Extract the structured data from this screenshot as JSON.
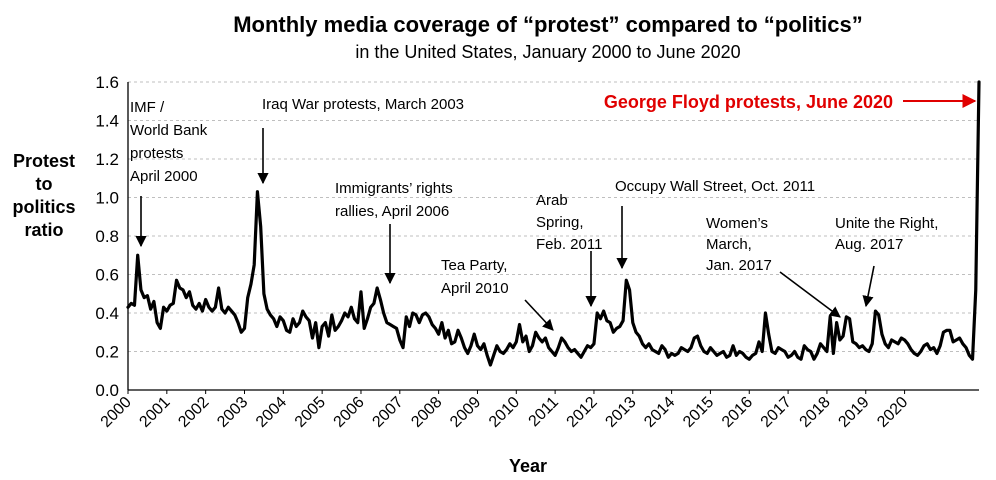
{
  "chart_data": {
    "type": "line",
    "title": "Monthly media coverage of “protest” compared to “politics”",
    "subtitle": "in the United States, January 2000 to June 2020",
    "xlabel": "Year",
    "ylabel": [
      "Protest",
      "to",
      "politics",
      "ratio"
    ],
    "ylim": [
      0,
      1.6
    ],
    "yticks": [
      "0.0",
      "0.2",
      "0.4",
      "0.6",
      "0.8",
      "1.0",
      "1.2",
      "1.4",
      "1.6"
    ],
    "xticks": [
      "2000",
      "2001",
      "2002",
      "2003",
      "2004",
      "2005",
      "2006",
      "2007",
      "2008",
      "2009",
      "2010",
      "2011",
      "2012",
      "2013",
      "2014",
      "2015",
      "2016",
      "2017",
      "2018",
      "2019",
      "2020"
    ],
    "grid": "horizontal dashed",
    "line_color": "#000000",
    "series": [
      {
        "start": "2000-01",
        "values": [
          0.43,
          0.45,
          0.44,
          0.7,
          0.52,
          0.48,
          0.49,
          0.42,
          0.46,
          0.35,
          0.32,
          0.43,
          0.41,
          0.44,
          0.45,
          0.57,
          0.53,
          0.52,
          0.48,
          0.51,
          0.44,
          0.42,
          0.45,
          0.41,
          0.47,
          0.43,
          0.41,
          0.43,
          0.53,
          0.42,
          0.4,
          0.43,
          0.41,
          0.39,
          0.35,
          0.3,
          0.32,
          0.48,
          0.55,
          0.65,
          1.03,
          0.85,
          0.5,
          0.42,
          0.39,
          0.37,
          0.33,
          0.38,
          0.36,
          0.31,
          0.3,
          0.37,
          0.33,
          0.35,
          0.41,
          0.38,
          0.36,
          0.27,
          0.35,
          0.22,
          0.33,
          0.35,
          0.28,
          0.39,
          0.31,
          0.33,
          0.36,
          0.4,
          0.38,
          0.43,
          0.37,
          0.35,
          0.51,
          0.32,
          0.37,
          0.43,
          0.45,
          0.53,
          0.47,
          0.4,
          0.35,
          0.34,
          0.33,
          0.32,
          0.26,
          0.22,
          0.38,
          0.33,
          0.4,
          0.39,
          0.35,
          0.39,
          0.4,
          0.38,
          0.34,
          0.32,
          0.29,
          0.35,
          0.27,
          0.31,
          0.24,
          0.25,
          0.31,
          0.27,
          0.22,
          0.19,
          0.23,
          0.29,
          0.23,
          0.21,
          0.24,
          0.18,
          0.13,
          0.18,
          0.23,
          0.2,
          0.19,
          0.21,
          0.24,
          0.22,
          0.25,
          0.34,
          0.25,
          0.28,
          0.2,
          0.23,
          0.3,
          0.27,
          0.25,
          0.27,
          0.22,
          0.2,
          0.18,
          0.22,
          0.27,
          0.25,
          0.22,
          0.2,
          0.21,
          0.19,
          0.17,
          0.2,
          0.23,
          0.22,
          0.24,
          0.4,
          0.37,
          0.41,
          0.36,
          0.35,
          0.3,
          0.32,
          0.33,
          0.36,
          0.57,
          0.52,
          0.35,
          0.3,
          0.28,
          0.24,
          0.22,
          0.24,
          0.21,
          0.2,
          0.19,
          0.23,
          0.21,
          0.17,
          0.19,
          0.18,
          0.19,
          0.22,
          0.21,
          0.2,
          0.22,
          0.27,
          0.28,
          0.23,
          0.2,
          0.19,
          0.22,
          0.2,
          0.18,
          0.19,
          0.2,
          0.17,
          0.18,
          0.23,
          0.18,
          0.2,
          0.19,
          0.17,
          0.16,
          0.18,
          0.19,
          0.25,
          0.2,
          0.4,
          0.29,
          0.2,
          0.19,
          0.22,
          0.21,
          0.2,
          0.17,
          0.18,
          0.2,
          0.17,
          0.16,
          0.23,
          0.21,
          0.2,
          0.16,
          0.19,
          0.24,
          0.22,
          0.2,
          0.38,
          0.19,
          0.35,
          0.26,
          0.28,
          0.38,
          0.37,
          0.25,
          0.24,
          0.22,
          0.23,
          0.21,
          0.2,
          0.24,
          0.41,
          0.39,
          0.29,
          0.24,
          0.22,
          0.26,
          0.25,
          0.24,
          0.27,
          0.26,
          0.24,
          0.21,
          0.19,
          0.18,
          0.2,
          0.23,
          0.24,
          0.21,
          0.22,
          0.19,
          0.23,
          0.3,
          0.31,
          0.31,
          0.25,
          0.26,
          0.27,
          0.24,
          0.22,
          0.18,
          0.16,
          0.52,
          1.6
        ]
      }
    ],
    "annotations": [
      {
        "id": "imf",
        "lines": [
          "IMF /",
          "World Bank",
          "protests",
          "April 2000"
        ],
        "target": "2000-04"
      },
      {
        "id": "iraq",
        "lines": [
          "Iraq War protests, March 2003"
        ],
        "target": "2003-03"
      },
      {
        "id": "immigrants",
        "lines": [
          "Immigrants’ rights",
          "rallies, April 2006"
        ],
        "target": "2006-04"
      },
      {
        "id": "teaparty",
        "lines": [
          "Tea Party,",
          "April 2010"
        ],
        "target": "2010-04"
      },
      {
        "id": "arab",
        "lines": [
          "Arab",
          "Spring,",
          "Feb. 2011"
        ],
        "target": "2011-02"
      },
      {
        "id": "occupy",
        "lines": [
          "Occupy Wall Street, Oct. 2011"
        ],
        "target": "2011-10"
      },
      {
        "id": "womens",
        "lines": [
          "Women’s",
          "March,",
          "Jan. 2017"
        ],
        "target": "2017-01"
      },
      {
        "id": "unite",
        "lines": [
          "Unite the Right,",
          "Aug. 2017"
        ],
        "target": "2017-08"
      },
      {
        "id": "floyd",
        "lines": [
          "George Floyd protests, June 2020"
        ],
        "target": "2020-06",
        "highlight_color": "#e00000"
      }
    ]
  }
}
